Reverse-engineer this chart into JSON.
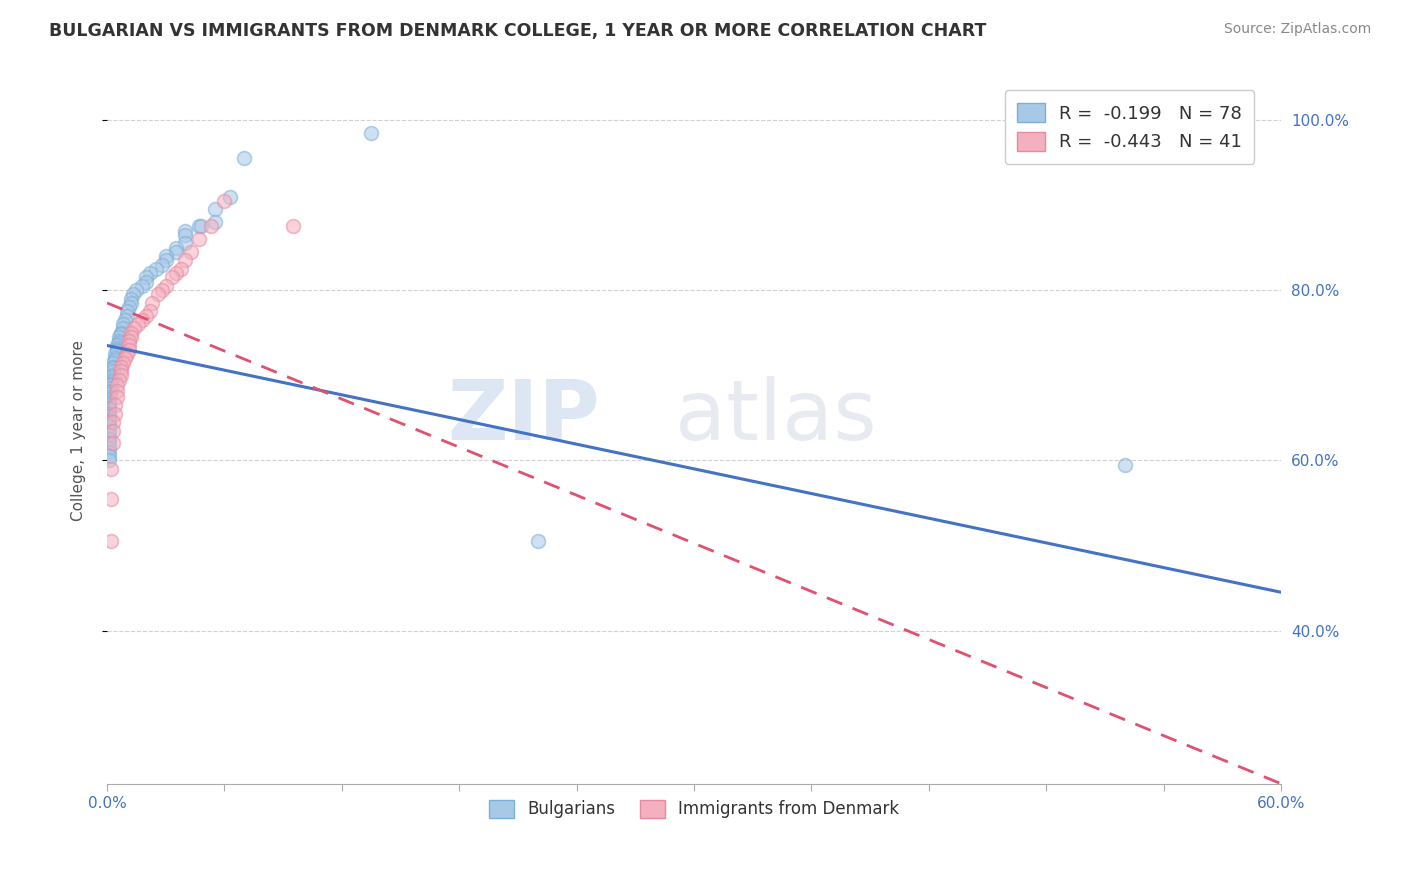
{
  "title": "BULGARIAN VS IMMIGRANTS FROM DENMARK COLLEGE, 1 YEAR OR MORE CORRELATION CHART",
  "source": "Source: ZipAtlas.com",
  "ylabel": "College, 1 year or more",
  "xlim": [
    0.0,
    0.6
  ],
  "ylim": [
    0.22,
    1.05
  ],
  "legend_entries": [
    {
      "label": "R =  -0.199   N = 78",
      "color": "#aec6e8"
    },
    {
      "label": "R =  -0.443   N = 41",
      "color": "#f4b8c1"
    }
  ],
  "blue_scatter_x": [
    0.135,
    0.07,
    0.063,
    0.055,
    0.055,
    0.047,
    0.048,
    0.04,
    0.04,
    0.04,
    0.035,
    0.035,
    0.03,
    0.03,
    0.028,
    0.025,
    0.022,
    0.02,
    0.02,
    0.018,
    0.015,
    0.013,
    0.012,
    0.012,
    0.011,
    0.01,
    0.01,
    0.009,
    0.008,
    0.008,
    0.007,
    0.007,
    0.006,
    0.006,
    0.006,
    0.005,
    0.005,
    0.005,
    0.005,
    0.004,
    0.004,
    0.004,
    0.003,
    0.003,
    0.003,
    0.003,
    0.003,
    0.002,
    0.002,
    0.002,
    0.002,
    0.002,
    0.002,
    0.002,
    0.001,
    0.001,
    0.001,
    0.001,
    0.001,
    0.001,
    0.001,
    0.001,
    0.001,
    0.001,
    0.001,
    0.001,
    0.001,
    0.001,
    0.001,
    0.001,
    0.001,
    0.001,
    0.001,
    0.001,
    0.001,
    0.001,
    0.52,
    0.22
  ],
  "blue_scatter_y": [
    0.985,
    0.955,
    0.91,
    0.895,
    0.88,
    0.875,
    0.875,
    0.87,
    0.865,
    0.855,
    0.85,
    0.845,
    0.84,
    0.835,
    0.83,
    0.825,
    0.82,
    0.815,
    0.81,
    0.805,
    0.8,
    0.795,
    0.79,
    0.785,
    0.78,
    0.775,
    0.77,
    0.765,
    0.76,
    0.755,
    0.75,
    0.748,
    0.745,
    0.74,
    0.738,
    0.735,
    0.732,
    0.73,
    0.728,
    0.725,
    0.72,
    0.718,
    0.715,
    0.71,
    0.708,
    0.705,
    0.7,
    0.698,
    0.695,
    0.692,
    0.69,
    0.688,
    0.685,
    0.682,
    0.68,
    0.678,
    0.675,
    0.672,
    0.67,
    0.668,
    0.665,
    0.662,
    0.66,
    0.655,
    0.652,
    0.648,
    0.645,
    0.64,
    0.635,
    0.63,
    0.625,
    0.62,
    0.615,
    0.61,
    0.605,
    0.6,
    0.595,
    0.505
  ],
  "pink_scatter_x": [
    0.095,
    0.06,
    0.053,
    0.047,
    0.043,
    0.04,
    0.038,
    0.035,
    0.033,
    0.03,
    0.028,
    0.026,
    0.023,
    0.022,
    0.02,
    0.018,
    0.016,
    0.014,
    0.012,
    0.012,
    0.011,
    0.011,
    0.011,
    0.01,
    0.009,
    0.008,
    0.007,
    0.007,
    0.007,
    0.006,
    0.005,
    0.005,
    0.005,
    0.004,
    0.004,
    0.003,
    0.003,
    0.003,
    0.002,
    0.002,
    0.002
  ],
  "pink_scatter_y": [
    0.875,
    0.905,
    0.875,
    0.86,
    0.845,
    0.835,
    0.825,
    0.82,
    0.815,
    0.805,
    0.8,
    0.795,
    0.785,
    0.775,
    0.77,
    0.765,
    0.76,
    0.755,
    0.75,
    0.745,
    0.74,
    0.735,
    0.73,
    0.725,
    0.72,
    0.715,
    0.71,
    0.705,
    0.7,
    0.695,
    0.688,
    0.682,
    0.675,
    0.665,
    0.655,
    0.645,
    0.635,
    0.62,
    0.59,
    0.555,
    0.505
  ],
  "blue_line_x": [
    0.0,
    0.6
  ],
  "blue_line_y": [
    0.735,
    0.445
  ],
  "pink_line_x": [
    0.0,
    0.6
  ],
  "pink_line_y": [
    0.785,
    0.22
  ],
  "watermark_zip": "ZIP",
  "watermark_atlas": "atlas",
  "bg_color": "#ffffff",
  "grid_color": "#cccccc",
  "blue_color": "#a8c8e8",
  "pink_color": "#f4b0be",
  "blue_edge_color": "#7bafd4",
  "pink_edge_color": "#e888a0",
  "blue_line_color": "#4472c4",
  "pink_line_color": "#e05070",
  "scatter_alpha": 0.55,
  "scatter_size": 100,
  "legend_R_color": "#e05070",
  "legend_N_color": "#4472c4"
}
